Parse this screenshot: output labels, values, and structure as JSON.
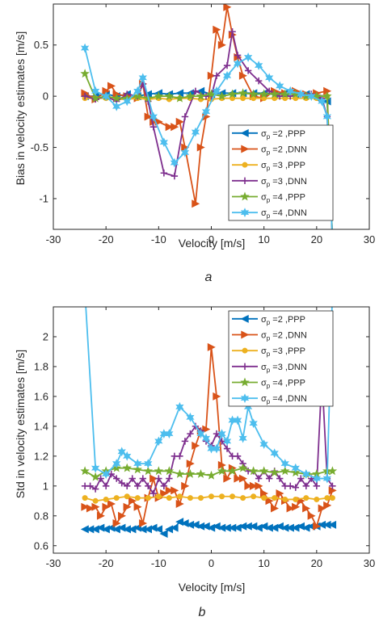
{
  "chart_data": [
    {
      "type": "line",
      "panel_label": "a",
      "xlabel": "Velocity [m/s]",
      "ylabel": "Bias in velocity estimates [m/s]",
      "xlim": [
        -30,
        30
      ],
      "ylim": [
        -1.3,
        0.9
      ],
      "xticks": [
        -30,
        -20,
        -10,
        0,
        10,
        20,
        30
      ],
      "yticks": [
        -1,
        -0.5,
        0,
        0.5
      ],
      "grid": false,
      "legend_position": "center-right",
      "series": [
        {
          "name": "σp =2 ,PPP",
          "color": "#0072BD",
          "marker": "triangle-left",
          "x": [
            -24,
            -22,
            -20,
            -18,
            -16,
            -14,
            -12,
            -10,
            -8,
            -6,
            -4,
            -2,
            0,
            2,
            4,
            6,
            8,
            10,
            12,
            14,
            16,
            18,
            20,
            22,
            23
          ],
          "y": [
            0,
            0,
            0.02,
            0,
            0.02,
            0,
            0.02,
            0.03,
            0.02,
            0.03,
            0.03,
            0.05,
            0.02,
            0.03,
            0.03,
            0.03,
            0.03,
            0.03,
            0.02,
            0.03,
            0.02,
            0.02,
            -0.02,
            -0.05,
            -1.4
          ]
        },
        {
          "name": "σp =2 ,DNN",
          "color": "#D95319",
          "marker": "triangle-right",
          "x": [
            -24,
            -22,
            -20,
            -19,
            -18,
            -16,
            -14,
            -13,
            -12,
            -11,
            -10,
            -8,
            -7,
            -6,
            -5,
            -3,
            -2,
            -1,
            0,
            1,
            2,
            3,
            4,
            5,
            6,
            8,
            10,
            12,
            14,
            16,
            18,
            20,
            22,
            23
          ],
          "y": [
            0.03,
            -0.03,
            0.05,
            0.1,
            0.02,
            0,
            -0.02,
            0.12,
            -0.2,
            -0.25,
            -0.25,
            -0.3,
            -0.3,
            -0.25,
            -0.5,
            -1.05,
            -0.5,
            -0.2,
            0.2,
            0.65,
            0.5,
            0.87,
            0.6,
            0.38,
            0.2,
            0,
            -0.02,
            0.05,
            0.03,
            0.05,
            0.02,
            0.03,
            0.05,
            -1.4
          ]
        },
        {
          "name": "σp =3 ,PPP",
          "color": "#EDB120",
          "marker": "circle",
          "x": [
            -24,
            -22,
            -20,
            -18,
            -16,
            -14,
            -12,
            -10,
            -8,
            -6,
            -4,
            -2,
            0,
            2,
            4,
            6,
            8,
            10,
            12,
            14,
            16,
            18,
            20,
            22,
            23
          ],
          "y": [
            -0.02,
            -0.02,
            -0.02,
            -0.03,
            -0.03,
            -0.02,
            -0.03,
            -0.02,
            -0.03,
            -0.02,
            -0.02,
            -0.03,
            -0.03,
            -0.02,
            -0.02,
            -0.02,
            -0.02,
            -0.02,
            -0.02,
            -0.02,
            -0.02,
            -0.02,
            -0.02,
            0,
            -1.4
          ]
        },
        {
          "name": "σp =3 ,DNN",
          "color": "#7E2F8E",
          "marker": "plus",
          "x": [
            -24,
            -22,
            -20,
            -18,
            -16,
            -14,
            -13,
            -12,
            -11,
            -9,
            -7,
            -5,
            -3,
            -1,
            0,
            1,
            3,
            4,
            5,
            7,
            9,
            11,
            13,
            15,
            17,
            19,
            21,
            22,
            23
          ],
          "y": [
            0,
            -0.03,
            0,
            -0.05,
            0.02,
            0,
            0.12,
            -0.05,
            -0.3,
            -0.75,
            -0.78,
            -0.2,
            0.05,
            0,
            0,
            0.2,
            0.3,
            0.63,
            0.4,
            0.25,
            0.15,
            0.05,
            0,
            0,
            0.02,
            0.02,
            -0.02,
            -0.2,
            -1.4
          ]
        },
        {
          "name": "σp =4 ,PPP",
          "color": "#77AC30",
          "marker": "star",
          "x": [
            -24,
            -22,
            -20,
            -18,
            -16,
            -14,
            -12,
            -10,
            -8,
            -6,
            -4,
            -2,
            0,
            2,
            4,
            6,
            8,
            10,
            12,
            14,
            16,
            18,
            20,
            22,
            23
          ],
          "y": [
            0.22,
            -0.02,
            0,
            -0.02,
            -0.02,
            0,
            -0.02,
            0,
            0,
            -0.02,
            0,
            0,
            0.02,
            0,
            0.02,
            0.03,
            0.02,
            0.02,
            0.02,
            0.02,
            0.02,
            0,
            0,
            0,
            -1.4
          ]
        },
        {
          "name": "σp =4 ,DNN",
          "color": "#4DBEEE",
          "marker": "hexagram",
          "x": [
            -24,
            -22,
            -20,
            -18,
            -16,
            -14,
            -13,
            -11,
            -9,
            -7,
            -5,
            -3,
            -1,
            1,
            3,
            5,
            7,
            9,
            11,
            13,
            15,
            17,
            19,
            21,
            22,
            23
          ],
          "y": [
            0.47,
            0.05,
            0,
            -0.1,
            -0.05,
            0.05,
            0.18,
            -0.2,
            -0.45,
            -0.65,
            -0.55,
            -0.35,
            -0.15,
            0.05,
            0.2,
            0.32,
            0.38,
            0.3,
            0.18,
            0.1,
            0.05,
            0.02,
            0,
            -0.05,
            -0.2,
            -1.4
          ]
        }
      ]
    },
    {
      "type": "line",
      "panel_label": "b",
      "xlabel": "Velocity [m/s]",
      "ylabel": "Std in velocity estimates [m/s]",
      "xlim": [
        -30,
        30
      ],
      "ylim": [
        0.55,
        2.2
      ],
      "xticks": [
        -30,
        -20,
        -10,
        0,
        10,
        20,
        30
      ],
      "yticks": [
        0.6,
        0.8,
        1,
        1.2,
        1.4,
        1.6,
        1.8,
        2
      ],
      "grid": false,
      "legend_position": "top-right",
      "series": [
        {
          "name": "σp =2 ,PPP",
          "color": "#0072BD",
          "marker": "triangle-left",
          "x": [
            -24,
            -23,
            -22,
            -21,
            -20,
            -19,
            -18,
            -17,
            -16,
            -15,
            -14,
            -13,
            -12,
            -11,
            -10,
            -9,
            -8,
            -7,
            -6,
            -5,
            -4,
            -3,
            -2,
            -1,
            0,
            1,
            2,
            3,
            4,
            5,
            6,
            7,
            8,
            9,
            10,
            11,
            12,
            13,
            14,
            15,
            16,
            17,
            18,
            19,
            20,
            21,
            22,
            23
          ],
          "y": [
            0.71,
            0.71,
            0.71,
            0.72,
            0.71,
            0.72,
            0.71,
            0.72,
            0.71,
            0.71,
            0.72,
            0.71,
            0.71,
            0.72,
            0.71,
            0.68,
            0.71,
            0.72,
            0.76,
            0.75,
            0.74,
            0.74,
            0.73,
            0.73,
            0.72,
            0.73,
            0.72,
            0.72,
            0.72,
            0.72,
            0.73,
            0.73,
            0.73,
            0.72,
            0.73,
            0.72,
            0.72,
            0.73,
            0.72,
            0.72,
            0.72,
            0.73,
            0.72,
            0.73,
            0.73,
            0.74,
            0.74,
            0.74
          ]
        },
        {
          "name": "σp =2 ,DNN",
          "color": "#D95319",
          "marker": "triangle-right",
          "x": [
            -24,
            -23,
            -22,
            -21,
            -20,
            -19,
            -18,
            -17,
            -16,
            -15,
            -14,
            -13,
            -12,
            -11,
            -10,
            -9,
            -8,
            -7,
            -6,
            -5,
            -4,
            -3,
            -2,
            -1,
            0,
            1,
            2,
            3,
            4,
            5,
            6,
            7,
            8,
            9,
            10,
            11,
            12,
            13,
            14,
            15,
            16,
            17,
            18,
            19,
            20,
            21,
            22,
            23
          ],
          "y": [
            0.86,
            0.85,
            0.86,
            0.8,
            0.86,
            0.88,
            0.75,
            0.8,
            0.86,
            0.9,
            0.86,
            0.75,
            0.92,
            1.05,
            0.92,
            0.95,
            0.97,
            0.97,
            0.88,
            1.0,
            1.15,
            1.27,
            1.37,
            1.38,
            1.93,
            1.6,
            1.14,
            1.05,
            1.12,
            1.05,
            1.05,
            1.0,
            1.0,
            1.0,
            0.95,
            0.9,
            0.85,
            0.95,
            0.9,
            0.85,
            0.86,
            0.9,
            0.85,
            0.8,
            0.73,
            0.85,
            0.87,
            0.97
          ]
        },
        {
          "name": "σp =3 ,PPP",
          "color": "#EDB120",
          "marker": "circle",
          "x": [
            -24,
            -22,
            -20,
            -18,
            -16,
            -14,
            -12,
            -10,
            -8,
            -6,
            -4,
            -2,
            0,
            2,
            4,
            6,
            8,
            10,
            12,
            14,
            16,
            18,
            20,
            22,
            23
          ],
          "y": [
            0.92,
            0.9,
            0.91,
            0.92,
            0.93,
            0.92,
            0.92,
            0.93,
            0.92,
            0.93,
            0.92,
            0.92,
            0.93,
            0.93,
            0.93,
            0.92,
            0.93,
            0.92,
            0.92,
            0.91,
            0.91,
            0.92,
            0.91,
            0.92,
            0.92
          ]
        },
        {
          "name": "σp =3 ,DNN",
          "color": "#7E2F8E",
          "marker": "plus",
          "x": [
            -24,
            -23,
            -22,
            -21,
            -20,
            -19,
            -18,
            -17,
            -16,
            -15,
            -14,
            -13,
            -12,
            -11,
            -10,
            -9,
            -8,
            -7,
            -6,
            -5,
            -4,
            -3,
            -2,
            -1,
            0,
            1,
            2,
            3,
            4,
            5,
            6,
            7,
            8,
            9,
            10,
            11,
            12,
            13,
            14,
            15,
            16,
            17,
            18,
            19,
            20,
            21,
            22,
            23
          ],
          "y": [
            1.0,
            1.0,
            0.98,
            1.05,
            1.0,
            1.08,
            1.05,
            1.02,
            1.0,
            1.05,
            1.0,
            1.05,
            1.0,
            0.95,
            1.05,
            1.0,
            1.05,
            1.2,
            1.2,
            1.3,
            1.35,
            1.4,
            1.37,
            1.3,
            1.27,
            1.35,
            1.3,
            1.25,
            1.2,
            1.2,
            1.15,
            1.1,
            1.1,
            1.05,
            1.1,
            1.05,
            1.1,
            1.05,
            1.0,
            1.0,
            0.99,
            1.05,
            1.0,
            1.05,
            1.0,
            1.74,
            1.05,
            1.0
          ]
        },
        {
          "name": "σp =4 ,PPP",
          "color": "#77AC30",
          "marker": "star",
          "x": [
            -24,
            -22,
            -20,
            -18,
            -16,
            -14,
            -12,
            -10,
            -8,
            -6,
            -4,
            -2,
            0,
            2,
            4,
            6,
            8,
            10,
            12,
            14,
            16,
            18,
            20,
            22,
            23
          ],
          "y": [
            1.1,
            1.06,
            1.1,
            1.12,
            1.12,
            1.11,
            1.1,
            1.1,
            1.1,
            1.08,
            1.08,
            1.08,
            1.07,
            1.1,
            1.1,
            1.12,
            1.1,
            1.1,
            1.09,
            1.1,
            1.09,
            1.08,
            1.08,
            1.1,
            1.1
          ]
        },
        {
          "name": "σp =4 ,DNN",
          "color": "#4DBEEE",
          "marker": "hexagram",
          "x": [
            -24,
            -22,
            -20,
            -18,
            -17,
            -16,
            -14,
            -12,
            -10,
            -9,
            -8,
            -6,
            -4,
            -2,
            -1,
            0,
            1,
            2,
            3,
            4,
            5,
            6,
            7,
            8,
            10,
            12,
            14,
            16,
            18,
            20,
            22,
            23
          ],
          "y": [
            2.3,
            1.12,
            1.08,
            1.15,
            1.23,
            1.2,
            1.15,
            1.15,
            1.3,
            1.35,
            1.35,
            1.53,
            1.46,
            1.35,
            1.32,
            1.25,
            1.25,
            1.35,
            1.3,
            1.44,
            1.44,
            1.32,
            1.53,
            1.42,
            1.28,
            1.22,
            1.15,
            1.12,
            1.08,
            1.05,
            1.05,
            2.3
          ]
        }
      ]
    }
  ]
}
